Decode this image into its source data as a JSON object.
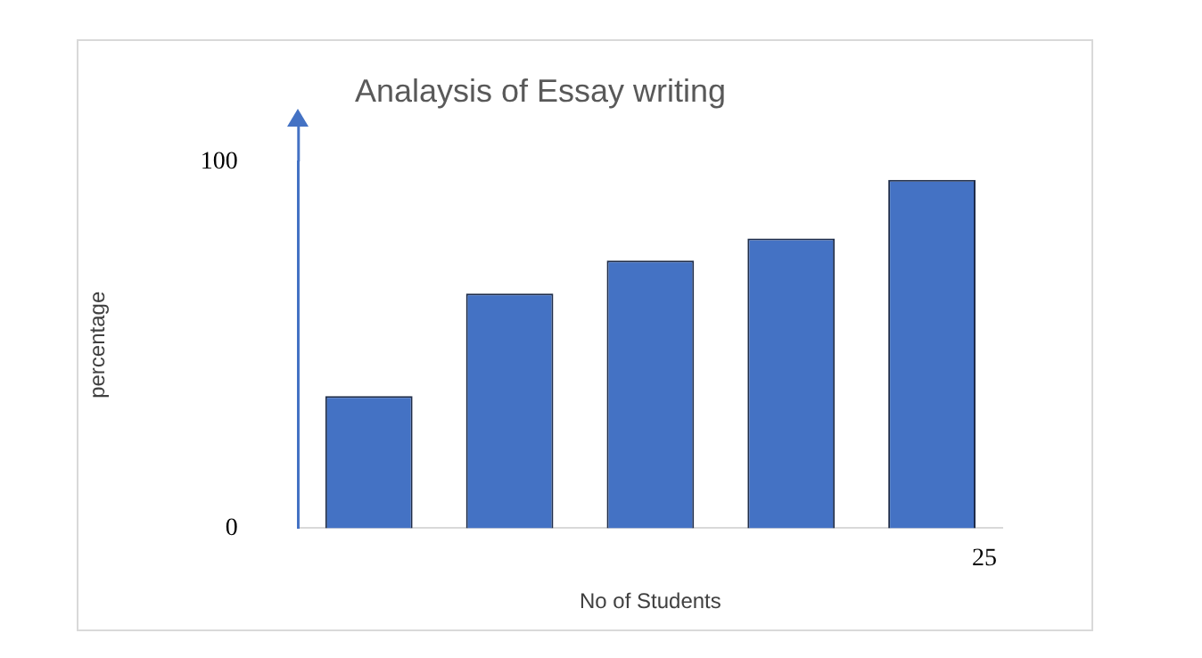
{
  "chart_data": {
    "type": "bar",
    "title": "Analaysis of Essay writing",
    "xlabel": "No of Students",
    "ylabel": "percentage",
    "categories": [
      null,
      null,
      null,
      null,
      null
    ],
    "values": [
      36,
      64,
      73,
      79,
      95
    ],
    "color": "#4472c4",
    "ylim": [
      0,
      100
    ],
    "yticks": [
      0,
      100
    ],
    "grid": false,
    "legend": false,
    "annotations": [
      "25"
    ]
  }
}
